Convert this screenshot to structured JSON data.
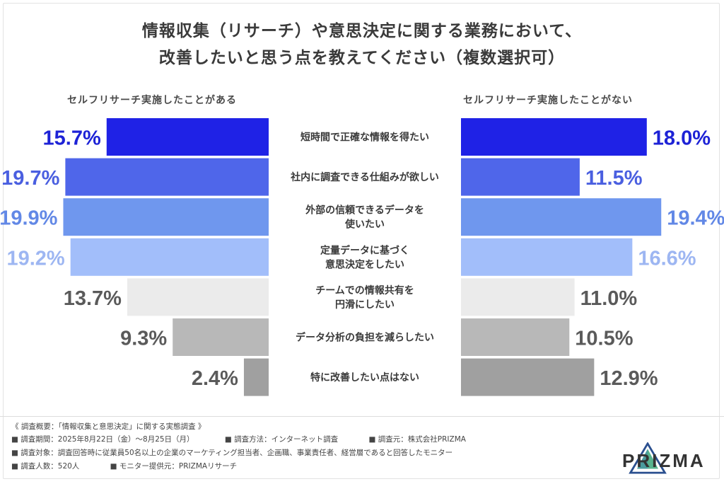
{
  "title_line1": "情報収集（リサーチ）や意思決定に関する業務において、",
  "title_line2": "改善したいと思う点を教えてください（複数選択可）",
  "chart_data": {
    "type": "bar",
    "orientation": "horizontal-butterfly",
    "unit": "%",
    "categories": [
      [
        "短時間で正確な情報を得たい"
      ],
      [
        "社内に調査できる仕組みが欲しい"
      ],
      [
        "外部の信頼できるデータを",
        "使いたい"
      ],
      [
        "定量データに基づく",
        "意思決定をしたい"
      ],
      [
        "チームでの情報共有を",
        "円滑にしたい"
      ],
      [
        "データ分析の負担を減らしたい"
      ],
      [
        "特に改善したい点はない"
      ]
    ],
    "series": [
      {
        "name": "セルフリサーチ実施したことがある",
        "values": [
          15.7,
          19.7,
          19.9,
          19.2,
          13.7,
          9.3,
          2.4
        ],
        "labels": [
          "15.7%",
          "19.7%",
          "19.9%",
          "19.2%",
          "13.7%",
          "9.3%",
          "2.4%"
        ]
      },
      {
        "name": "セルフリサーチ実施したことがない",
        "values": [
          18.0,
          11.5,
          19.4,
          16.6,
          11.0,
          10.5,
          12.9
        ],
        "labels": [
          "18.0%",
          "11.5%",
          "19.4%",
          "16.6%",
          "11.0%",
          "10.5%",
          "12.9%"
        ]
      }
    ],
    "bar_colors": [
      "#1f22e6",
      "#4f66ea",
      "#6f97ee",
      "#a2befa",
      "#ebebeb",
      "#b8b8b8",
      "#a0a0a0"
    ],
    "label_colors": [
      "#1d22d6",
      "#4a5fe0",
      "#6288e6",
      "#9db6f2",
      "#5a5a5a",
      "#5a5a5a",
      "#5a5a5a"
    ],
    "xlim": [
      0,
      20
    ]
  },
  "footer": {
    "overview": "《 調査概要：「情報収集と意思決定」に関する実態調査 》",
    "period": "■ 調査期間：2025年8月22日（金）～8月25日（月）",
    "method": "■ 調査方法：インターネット調査",
    "source": "■ 調査元：株式会社PRIZMA",
    "target": "■ 調査対象：調査回答時に従業員50名以上の企業のマーケティング担当者、企画職、事業責任者、経営層であると回答したモニター",
    "count": "■ 調査人数：520人",
    "provider": "■ モニター提供元：PRIZMAリサーチ"
  },
  "logo_text": "PRIZMA",
  "colors": {
    "logo_teal": "#2a8a8c",
    "logo_blue": "#2a4f8f",
    "logo_green": "#3aa67a"
  }
}
